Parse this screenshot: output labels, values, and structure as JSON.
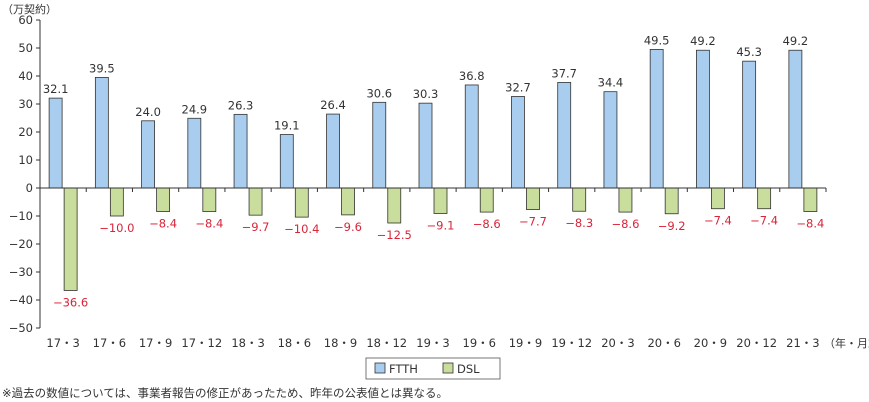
{
  "chart_data": {
    "type": "bar",
    "y_unit": "（万契約）",
    "x_unit": "（年・月末）",
    "ylim": [
      -50,
      60
    ],
    "yticks": [
      -50,
      -40,
      -30,
      -20,
      -10,
      0,
      10,
      20,
      30,
      40,
      50,
      60
    ],
    "grid": false,
    "legend_position": "bottom-center",
    "categories": [
      "17・3",
      "17・6",
      "17・9",
      "17・12",
      "18・3",
      "18・6",
      "18・9",
      "18・12",
      "19・3",
      "19・6",
      "19・9",
      "19・12",
      "20・3",
      "20・6",
      "20・9",
      "20・12",
      "21・3"
    ],
    "series": [
      {
        "name": "FTTH",
        "color": "#a9cdef",
        "values": [
          32.1,
          39.5,
          24.0,
          24.9,
          26.3,
          19.1,
          26.4,
          30.6,
          30.3,
          36.8,
          32.7,
          37.7,
          34.4,
          49.5,
          49.2,
          45.3,
          49.2
        ],
        "labels": [
          "32.1",
          "39.5",
          "24.0",
          "24.9",
          "26.3",
          "19.1",
          "26.4",
          "30.6",
          "30.3",
          "36.8",
          "32.7",
          "37.7",
          "34.4",
          "49.5",
          "49.2",
          "45.3",
          "49.2"
        ]
      },
      {
        "name": "DSL",
        "color": "#c9dd9c",
        "values": [
          -36.6,
          -10.0,
          -8.4,
          -8.4,
          -9.7,
          -10.4,
          -9.6,
          -12.5,
          -9.1,
          -8.6,
          -7.7,
          -8.3,
          -8.6,
          -9.2,
          -7.4,
          -7.4,
          -8.4
        ],
        "labels": [
          "−36.6",
          "−10.0",
          "−8.4",
          "−8.4",
          "−9.7",
          "−10.4",
          "−9.6",
          "−12.5",
          "−9.1",
          "−8.6",
          "−7.7",
          "−8.3",
          "−8.6",
          "−9.2",
          "−7.4",
          "−7.4",
          "−8.4"
        ]
      }
    ]
  },
  "note": "※過去の数値については、事業者報告の修正があったため、昨年の公表値とは異なる。"
}
